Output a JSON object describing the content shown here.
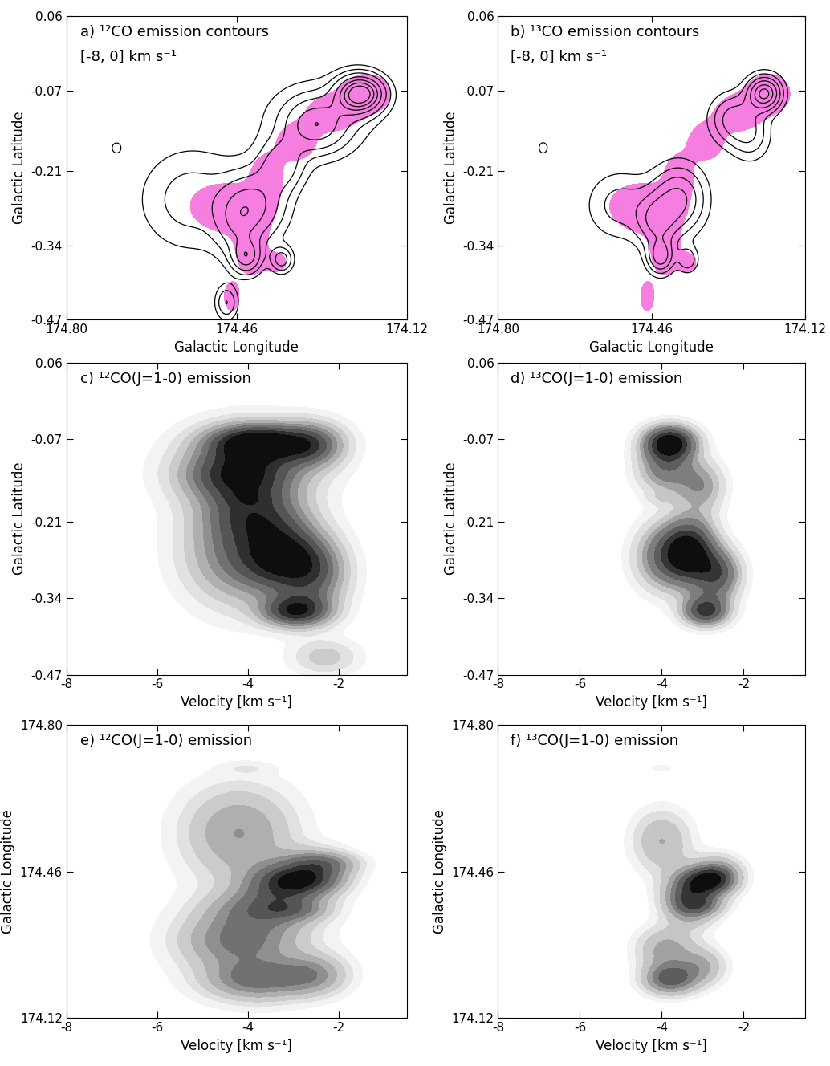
{
  "chart_data": [
    {
      "type": "contour",
      "title": "a) ¹²CO emission contours",
      "subtitle": "[-8, 0] km s⁻¹",
      "xlabel": "Galactic Longitude",
      "ylabel": "Galactic Latitude",
      "xlim": [
        174.8,
        174.12
      ],
      "xticks": [
        {
          "value": 174.8,
          "label": "174.80"
        },
        174.46,
        174.12
      ],
      "ylim": [
        -0.47,
        0.06
      ],
      "yticks": [
        0.06,
        -0.07,
        -0.21,
        -0.34,
        -0.47
      ],
      "velocity_range": [
        -8,
        0
      ],
      "color": "#000000",
      "contour_levels": [
        1.5,
        3,
        5,
        8,
        11,
        14,
        17
      ],
      "clumps": [
        [
          174.21,
          -0.075,
          -3.8,
          0.03,
          0.02,
          0.7,
          8
        ],
        [
          174.22,
          -0.08,
          -2.6,
          0.03,
          0.025,
          0.5,
          5
        ],
        [
          174.3,
          -0.13,
          -4.2,
          0.04,
          0.03,
          0.8,
          4
        ],
        [
          174.3,
          -0.12,
          -4.0,
          0.08,
          0.05,
          1.0,
          1.2
        ],
        [
          174.37,
          -0.2,
          -3.8,
          0.03,
          0.03,
          0.7,
          3.5
        ],
        [
          174.42,
          -0.27,
          -3.2,
          0.04,
          0.04,
          0.6,
          5
        ],
        [
          174.46,
          -0.3,
          -2.5,
          0.03,
          0.04,
          0.5,
          4
        ],
        [
          174.44,
          -0.36,
          -2.9,
          0.02,
          0.02,
          0.5,
          7
        ],
        [
          174.37,
          -0.365,
          -3.0,
          0.015,
          0.015,
          0.5,
          5
        ],
        [
          174.48,
          -0.44,
          -2.3,
          0.015,
          0.02,
          0.5,
          4
        ],
        [
          174.55,
          -0.26,
          -4.2,
          0.07,
          0.06,
          0.8,
          2
        ],
        [
          174.7,
          -0.17,
          -4.0,
          0.01,
          0.01,
          0.4,
          2
        ]
      ],
      "shaded": {
        "color": "#f57ee0",
        "level": 0.5,
        "clumps": [
          [
            174.2,
            -0.075,
            0.035,
            0.025,
            1.2
          ],
          [
            174.27,
            -0.11,
            0.04,
            0.025,
            1
          ],
          [
            174.34,
            -0.16,
            0.03,
            0.025,
            1
          ],
          [
            174.4,
            -0.22,
            0.025,
            0.03,
            1
          ],
          [
            174.45,
            -0.28,
            0.05,
            0.03,
            1
          ],
          [
            174.5,
            -0.27,
            0.04,
            0.025,
            0.9
          ],
          [
            174.43,
            -0.35,
            0.025,
            0.035,
            1
          ],
          [
            174.47,
            -0.43,
            0.012,
            0.02,
            1
          ],
          [
            174.38,
            -0.37,
            0.015,
            0.012,
            1
          ]
        ]
      }
    },
    {
      "type": "contour",
      "title": "b) ¹³CO emission contours",
      "subtitle": "[-8, 0] km s⁻¹",
      "xlabel": "Galactic Longitude",
      "ylabel": "Galactic Latitude",
      "xlim": [
        174.8,
        174.12
      ],
      "xticks": [
        {
          "value": 174.8,
          "label": "174.80"
        },
        174.46,
        174.12
      ],
      "ylim": [
        -0.47,
        0.06
      ],
      "yticks": [
        0.06,
        -0.07,
        -0.21,
        -0.34,
        -0.47
      ],
      "velocity_range": [
        -8,
        0
      ],
      "color": "#000000",
      "contour_levels": [
        0.4,
        0.8,
        1.3,
        1.9,
        2.6,
        3.2
      ],
      "clumps": [
        [
          174.21,
          -0.075,
          -3.8,
          0.025,
          0.02,
          0.45,
          3.0
        ],
        [
          174.28,
          -0.12,
          -3.9,
          0.035,
          0.03,
          0.5,
          1.2
        ],
        [
          174.24,
          -0.15,
          -3.0,
          0.03,
          0.03,
          0.4,
          1.0
        ],
        [
          174.4,
          -0.26,
          -3.3,
          0.04,
          0.04,
          0.45,
          1.8
        ],
        [
          174.45,
          -0.3,
          -2.6,
          0.03,
          0.03,
          0.4,
          1.6
        ],
        [
          174.44,
          -0.36,
          -2.9,
          0.02,
          0.02,
          0.4,
          2.2
        ],
        [
          174.38,
          -0.365,
          -3.0,
          0.015,
          0.015,
          0.4,
          1.2
        ],
        [
          174.53,
          -0.27,
          -4.0,
          0.05,
          0.04,
          0.5,
          0.8
        ],
        [
          174.7,
          -0.17,
          -4.0,
          0.008,
          0.008,
          0.3,
          1.0
        ]
      ],
      "shaded": {
        "color": "#f57ee0",
        "level": 0.5,
        "clumps": [
          [
            174.2,
            -0.075,
            0.035,
            0.025,
            1.2
          ],
          [
            174.27,
            -0.11,
            0.04,
            0.025,
            1
          ],
          [
            174.34,
            -0.16,
            0.03,
            0.025,
            1
          ],
          [
            174.4,
            -0.22,
            0.025,
            0.03,
            1
          ],
          [
            174.45,
            -0.28,
            0.05,
            0.03,
            1
          ],
          [
            174.5,
            -0.27,
            0.04,
            0.025,
            0.9
          ],
          [
            174.43,
            -0.35,
            0.025,
            0.035,
            1
          ],
          [
            174.47,
            -0.43,
            0.012,
            0.02,
            1
          ],
          [
            174.38,
            -0.37,
            0.015,
            0.012,
            1
          ]
        ]
      }
    },
    {
      "type": "latitude_velocity",
      "title": "c) ¹²CO(J=1-0) emission",
      "xlabel": "Velocity [km s⁻¹]",
      "ylabel": "Galactic Latitude",
      "xlim": [
        -8,
        -0.5
      ],
      "xticks": [
        -8,
        -6,
        -4,
        -2
      ],
      "ylim": [
        -0.47,
        0.06
      ],
      "yticks": [
        0.06,
        -0.07,
        -0.21,
        -0.34,
        -0.47
      ],
      "levels": [
        0.03,
        0.07,
        0.12,
        0.18,
        0.25,
        0.32,
        0.4,
        0.5,
        0.6
      ],
      "clumps": [
        [
          174.21,
          -0.075,
          -3.8,
          0.03,
          0.02,
          0.7,
          8
        ],
        [
          174.22,
          -0.08,
          -2.6,
          0.03,
          0.025,
          0.5,
          5
        ],
        [
          174.3,
          -0.13,
          -4.2,
          0.04,
          0.03,
          0.8,
          4
        ],
        [
          174.3,
          -0.12,
          -4.0,
          0.08,
          0.05,
          1.0,
          1.2
        ],
        [
          174.37,
          -0.2,
          -3.8,
          0.03,
          0.03,
          0.7,
          3.5
        ],
        [
          174.42,
          -0.27,
          -3.2,
          0.04,
          0.04,
          0.6,
          5
        ],
        [
          174.46,
          -0.3,
          -2.5,
          0.03,
          0.04,
          0.5,
          4
        ],
        [
          174.44,
          -0.36,
          -2.9,
          0.02,
          0.02,
          0.5,
          7
        ],
        [
          174.37,
          -0.365,
          -3.0,
          0.015,
          0.015,
          0.5,
          5
        ],
        [
          174.48,
          -0.44,
          -2.3,
          0.015,
          0.02,
          0.5,
          4
        ],
        [
          174.55,
          -0.26,
          -4.2,
          0.07,
          0.06,
          0.8,
          2
        ],
        [
          174.7,
          -0.17,
          -4.0,
          0.01,
          0.01,
          0.4,
          2
        ]
      ]
    },
    {
      "type": "latitude_velocity",
      "title": "d) ¹³CO(J=1-0) emission",
      "xlabel": "Velocity [km s⁻¹]",
      "ylabel": "Galactic Latitude",
      "xlim": [
        -8,
        -0.5
      ],
      "xticks": [
        -8,
        -6,
        -4,
        -2
      ],
      "ylim": [
        -0.47,
        0.06
      ],
      "yticks": [
        0.06,
        -0.07,
        -0.21,
        -0.34,
        -0.47
      ],
      "levels": [
        0.015,
        0.03,
        0.05,
        0.07,
        0.09,
        0.12,
        0.15,
        0.18
      ],
      "clumps": [
        [
          174.21,
          -0.075,
          -3.8,
          0.025,
          0.02,
          0.45,
          3.0
        ],
        [
          174.28,
          -0.12,
          -3.9,
          0.035,
          0.03,
          0.5,
          1.2
        ],
        [
          174.24,
          -0.15,
          -3.0,
          0.03,
          0.03,
          0.4,
          1.0
        ],
        [
          174.4,
          -0.26,
          -3.3,
          0.04,
          0.04,
          0.45,
          1.8
        ],
        [
          174.45,
          -0.3,
          -2.6,
          0.03,
          0.03,
          0.4,
          1.6
        ],
        [
          174.44,
          -0.36,
          -2.9,
          0.02,
          0.02,
          0.4,
          2.2
        ],
        [
          174.38,
          -0.365,
          -3.0,
          0.015,
          0.015,
          0.4,
          1.2
        ],
        [
          174.53,
          -0.27,
          -4.0,
          0.05,
          0.04,
          0.5,
          0.8
        ],
        [
          174.7,
          -0.17,
          -4.0,
          0.008,
          0.008,
          0.3,
          1.0
        ]
      ]
    },
    {
      "type": "longitude_velocity",
      "title": "e) ¹²CO(J=1-0) emission",
      "xlabel": "Velocity [km s⁻¹]",
      "ylabel": "Galactic Longitude",
      "xlim": [
        -8,
        -0.5
      ],
      "xticks": [
        -8,
        -6,
        -4,
        -2
      ],
      "ylim": [
        174.12,
        174.8
      ],
      "yticks": [
        174.12,
        174.46,
        {
          "value": 174.8,
          "label": "174.80"
        }
      ],
      "levels": [
        0.03,
        0.07,
        0.12,
        0.2,
        0.3,
        0.4,
        0.55,
        0.7,
        0.85
      ],
      "clumps": [
        [
          174.21,
          -0.075,
          -3.8,
          0.03,
          0.02,
          0.7,
          8
        ],
        [
          174.22,
          -0.08,
          -2.6,
          0.03,
          0.025,
          0.5,
          5
        ],
        [
          174.3,
          -0.13,
          -4.2,
          0.04,
          0.03,
          0.8,
          4
        ],
        [
          174.3,
          -0.12,
          -4.0,
          0.08,
          0.05,
          1.0,
          1.2
        ],
        [
          174.37,
          -0.2,
          -3.8,
          0.03,
          0.03,
          0.7,
          3.5
        ],
        [
          174.42,
          -0.27,
          -3.2,
          0.04,
          0.04,
          0.6,
          5
        ],
        [
          174.46,
          -0.3,
          -2.5,
          0.03,
          0.04,
          0.5,
          4
        ],
        [
          174.44,
          -0.36,
          -2.9,
          0.02,
          0.02,
          0.5,
          7
        ],
        [
          174.37,
          -0.365,
          -3.0,
          0.015,
          0.015,
          0.5,
          5
        ],
        [
          174.48,
          -0.44,
          -2.3,
          0.015,
          0.02,
          0.5,
          4
        ],
        [
          174.55,
          -0.26,
          -4.2,
          0.07,
          0.06,
          0.8,
          2
        ],
        [
          174.7,
          -0.17,
          -4.0,
          0.01,
          0.01,
          0.4,
          2
        ]
      ]
    },
    {
      "type": "longitude_velocity",
      "title": "f) ¹³CO(J=1-0) emission",
      "xlabel": "Velocity [km s⁻¹]",
      "ylabel": "Galactic Longitude",
      "xlim": [
        -8,
        -0.5
      ],
      "xticks": [
        -8,
        -6,
        -4,
        -2
      ],
      "ylim": [
        174.12,
        174.8
      ],
      "yticks": [
        174.12,
        174.46,
        {
          "value": 174.8,
          "label": "174.80"
        }
      ],
      "levels": [
        0.015,
        0.03,
        0.05,
        0.08,
        0.11,
        0.14,
        0.18,
        0.22
      ],
      "clumps": [
        [
          174.21,
          -0.075,
          -3.8,
          0.025,
          0.02,
          0.45,
          3.0
        ],
        [
          174.28,
          -0.12,
          -3.9,
          0.035,
          0.03,
          0.5,
          1.2
        ],
        [
          174.24,
          -0.15,
          -3.0,
          0.03,
          0.03,
          0.4,
          1.0
        ],
        [
          174.4,
          -0.26,
          -3.3,
          0.04,
          0.04,
          0.45,
          1.8
        ],
        [
          174.45,
          -0.3,
          -2.6,
          0.03,
          0.03,
          0.4,
          1.6
        ],
        [
          174.44,
          -0.36,
          -2.9,
          0.02,
          0.02,
          0.4,
          2.2
        ],
        [
          174.38,
          -0.365,
          -3.0,
          0.015,
          0.015,
          0.4,
          1.2
        ],
        [
          174.53,
          -0.27,
          -4.0,
          0.05,
          0.04,
          0.5,
          0.8
        ],
        [
          174.7,
          -0.17,
          -4.0,
          0.008,
          0.008,
          0.3,
          1.0
        ]
      ]
    }
  ]
}
